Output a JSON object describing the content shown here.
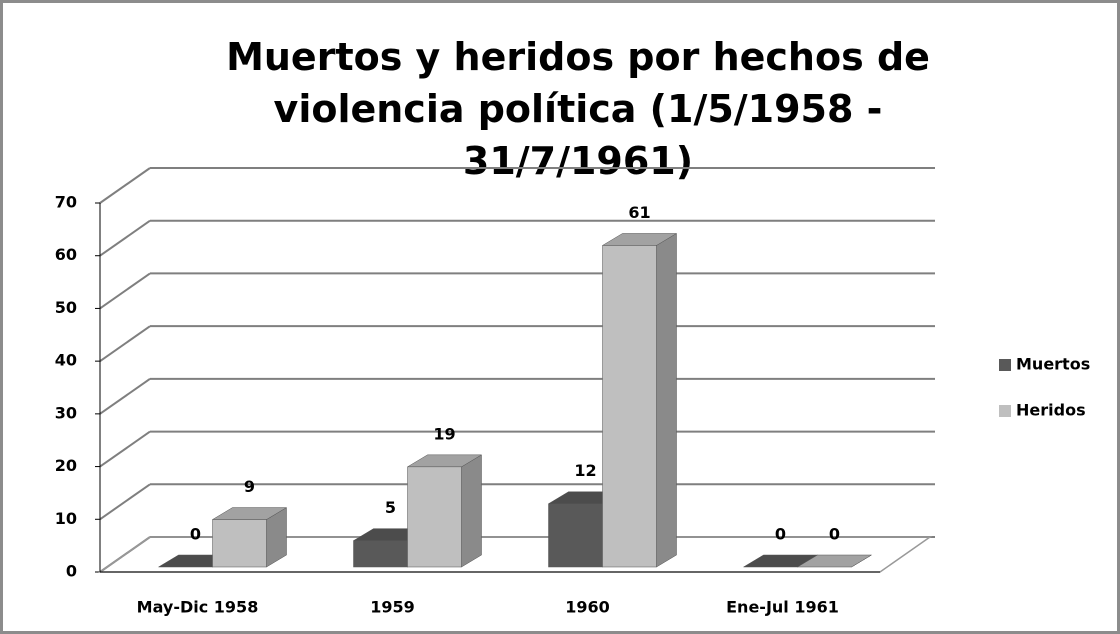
{
  "chart_data": {
    "type": "bar3d",
    "title": "Muertos y heridos por hechos de violencia política (1/5/1958 - 31/7/1961)",
    "categories": [
      "May-Dic 1958",
      "1959",
      "1960",
      "Ene-Jul 1961"
    ],
    "series": [
      {
        "name": "Muertos",
        "color": "#595959",
        "values": [
          0,
          5,
          12,
          0
        ]
      },
      {
        "name": "Heridos",
        "color": "#bfbfbf",
        "values": [
          9,
          19,
          61,
          0
        ]
      }
    ],
    "ylim": [
      0,
      70
    ],
    "yticks": [
      0,
      10,
      20,
      30,
      40,
      50,
      60,
      70
    ],
    "grid": true,
    "legend": "right"
  }
}
